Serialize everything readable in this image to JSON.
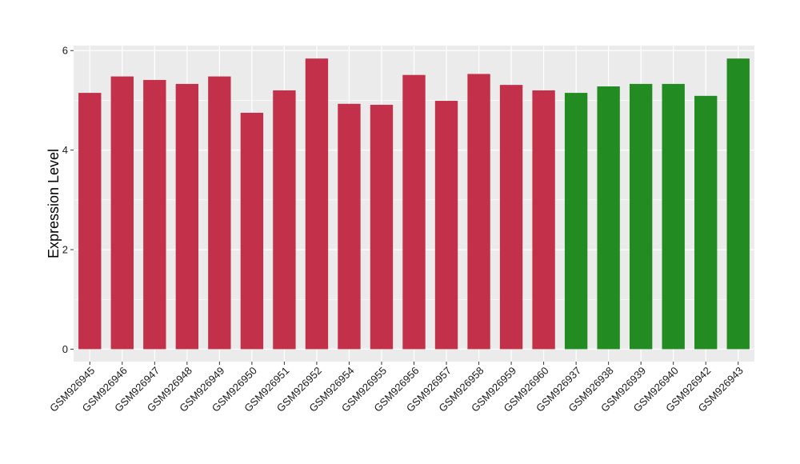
{
  "chart_data": {
    "type": "bar",
    "title": "",
    "xlabel": "",
    "ylabel": "Expression Level",
    "ylim": [
      -0.25,
      6.1
    ],
    "yticks": [
      0,
      2,
      4,
      6
    ],
    "grid": true,
    "legend": "none",
    "categories": [
      "GSM926945",
      "GSM926946",
      "GSM926947",
      "GSM926948",
      "GSM926949",
      "GSM926950",
      "GSM926951",
      "GSM926952",
      "GSM926954",
      "GSM926955",
      "GSM926956",
      "GSM926957",
      "GSM926958",
      "GSM926959",
      "GSM926960",
      "GSM926937",
      "GSM926938",
      "GSM926939",
      "GSM926940",
      "GSM926942",
      "GSM926943"
    ],
    "values": [
      5.15,
      5.48,
      5.41,
      5.33,
      5.48,
      4.75,
      5.2,
      5.84,
      4.93,
      4.91,
      5.51,
      4.99,
      5.53,
      5.31,
      5.2,
      5.15,
      5.28,
      5.33,
      5.33,
      5.09,
      5.84
    ],
    "bar_colors": [
      "#c3304a",
      "#c3304a",
      "#c3304a",
      "#c3304a",
      "#c3304a",
      "#c3304a",
      "#c3304a",
      "#c3304a",
      "#c3304a",
      "#c3304a",
      "#c3304a",
      "#c3304a",
      "#c3304a",
      "#c3304a",
      "#c3304a",
      "#228b22",
      "#228b22",
      "#228b22",
      "#228b22",
      "#228b22",
      "#228b22"
    ],
    "panel_background": "#ebebeb",
    "grid_color": "#ffffff"
  }
}
